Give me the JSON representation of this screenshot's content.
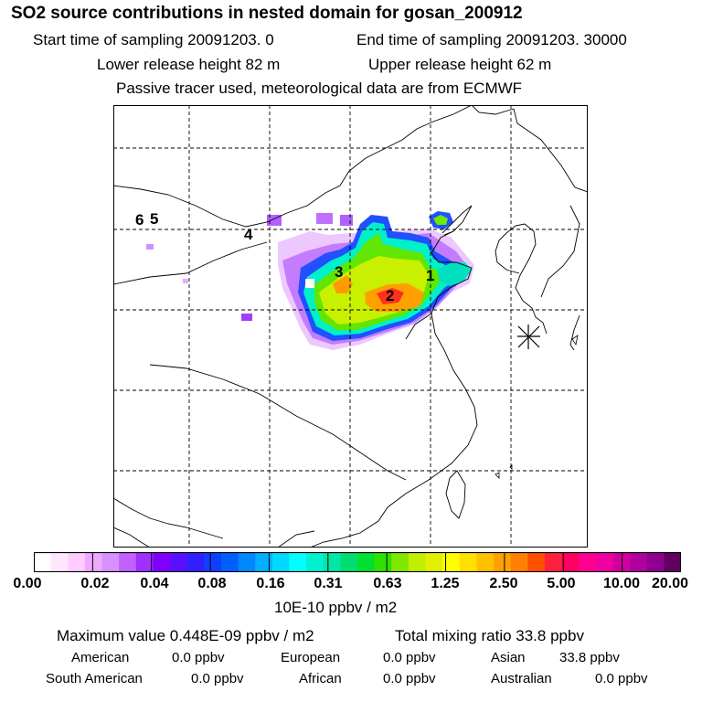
{
  "header": {
    "title": "SO2 source contributions in nested domain for gosan_200912",
    "start_time": "Start time of sampling 20091203.     0",
    "end_time": "End time of sampling 20091203. 30000",
    "lower_release": "Lower release height   82 m",
    "upper_release": "Upper release height   62 m",
    "note": "Passive tracer used, meteorological data are from ECMWF"
  },
  "map": {
    "labels": [
      "6",
      "5",
      "4",
      "3",
      "2",
      "1"
    ]
  },
  "legend": {
    "ticks": [
      "0.00",
      "0.02",
      "0.04",
      "0.08",
      "0.16",
      "0.31",
      "0.63",
      "1.25",
      "2.50",
      "5.00",
      "10.00",
      "20.00"
    ],
    "unit": "10E-10 ppbv / m2",
    "colors": [
      "#ffffff",
      "#ffe6ff",
      "#ffccff",
      "#f0a8ff",
      "#d990ff",
      "#c060ff",
      "#a030ff",
      "#8000ff",
      "#5a10ff",
      "#3020ff",
      "#1040ff",
      "#0060ff",
      "#0088ff",
      "#00b0ff",
      "#00d8ff",
      "#00ffff",
      "#00f0d0",
      "#00e6a8",
      "#00dd70",
      "#00e030",
      "#30e000",
      "#80e800",
      "#c0f000",
      "#e0f000",
      "#ffff00",
      "#ffe000",
      "#ffc000",
      "#ffa000",
      "#ff8000",
      "#ff5000",
      "#ff2040",
      "#ff0060",
      "#ff0090",
      "#f000a0",
      "#d000a0",
      "#b000a0",
      "#900090",
      "#600060"
    ]
  },
  "summary": {
    "max_label": "Maximum value  0.448E-09 ppbv / m2",
    "total_label": "Total mixing ratio       33.8 ppbv",
    "regions": [
      {
        "name": "American",
        "value": "0.0 ppbv"
      },
      {
        "name": "European",
        "value": "0.0 ppbv"
      },
      {
        "name": "Asian",
        "value": "33.8 ppbv"
      },
      {
        "name": "South American",
        "value": "0.0 ppbv"
      },
      {
        "name": "African",
        "value": "0.0 ppbv"
      },
      {
        "name": "Australian",
        "value": "0.0 ppbv"
      }
    ]
  }
}
